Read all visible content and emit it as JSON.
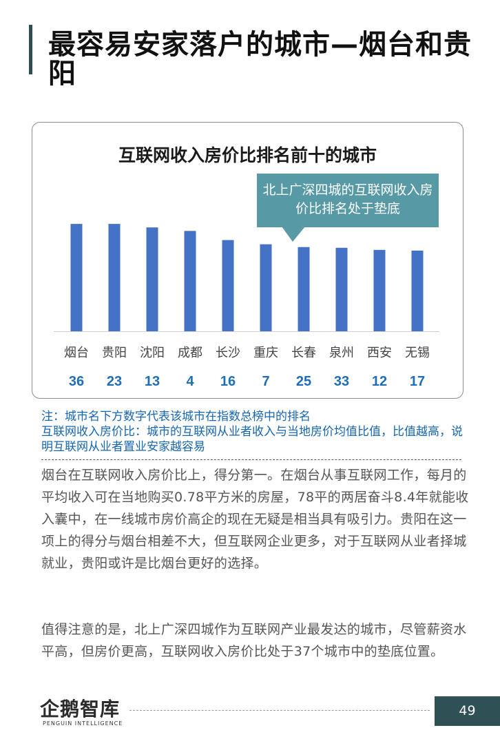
{
  "page": {
    "title": "最容易安家落户的城市—烟台和贵阳",
    "page_number": "49"
  },
  "callout": {
    "text": "北上广深四城的互联网收入房价比排名处于垫底"
  },
  "notes": {
    "line1": "注：城市名下方数字代表该城市在指数总榜中的排名",
    "line2": "互联网收入房价比：城市的互联网从业者收入与当地房价均值比值，比值越高，说明互联网从业者置业安家越容易"
  },
  "body": {
    "paragraph1": "烟台在互联网收入房价比上，得分第一。在烟台从事互联网工作，每月的平均收入可在当地购买0.78平方米的房屋，78平的两居奋斗8.4年就能收入囊中，在一线城市房价高企的现在无疑是相当具有吸引力。贵阳在这一项上的得分与烟台相差不大，但互联网企业更多，对于互联网从业者择城就业，贵阳或许是比烟台更好的选择。",
    "paragraph2": "值得注意的是，北上广深四城作为互联网产业最发达的城市，尽管薪资水平高，但房价更高，互联网收入房价比处于37个城市中的垫底位置。"
  },
  "logo": {
    "name": "企鹅智库",
    "tagline": "PENGUIN INTELLIGENCE"
  },
  "chart_data": {
    "type": "bar",
    "title": "互联网收入房价比排名前十的城市",
    "categories": [
      "烟台",
      "贵阳",
      "沈阳",
      "成都",
      "长沙",
      "重庆",
      "长春",
      "泉州",
      "西安",
      "无锡"
    ],
    "values": [
      153,
      153,
      148,
      143,
      130,
      124,
      120,
      119,
      116,
      115
    ],
    "ranks": [
      "36",
      "23",
      "13",
      "4",
      "16",
      "7",
      "25",
      "33",
      "12",
      "17"
    ],
    "ylim": [
      0,
      160
    ],
    "bar_color": "#4472c4",
    "rank_color": "#1f6db5",
    "grid": false
  }
}
